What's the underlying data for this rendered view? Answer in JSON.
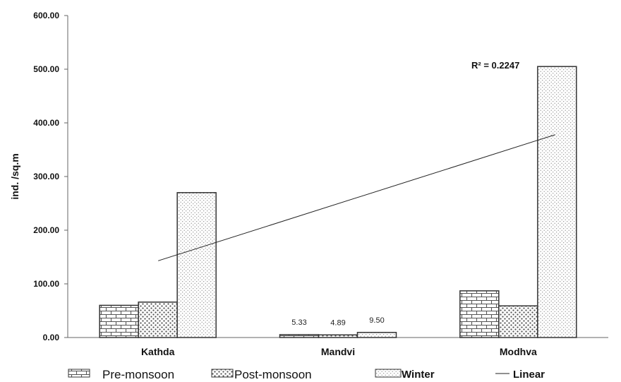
{
  "chart_data": {
    "type": "bar",
    "categories": [
      "Kathda",
      "Mandvi",
      "Modhva"
    ],
    "series": [
      {
        "name": "Pre-monsoon",
        "values": [
          60,
          5.33,
          87
        ],
        "pattern": "brick"
      },
      {
        "name": "Post-monsoon",
        "values": [
          66,
          4.89,
          59
        ],
        "pattern": "dots-dense"
      },
      {
        "name": "Winter",
        "values": [
          270,
          9.5,
          505
        ],
        "pattern": "dots-sparse"
      }
    ],
    "data_labels": {
      "Mandvi": [
        "5.33",
        "4.89",
        "9.50"
      ]
    },
    "trendline": {
      "name": "Linear",
      "type": "linear",
      "start": 143,
      "end": 378
    },
    "annotation": "R² = 0.2247",
    "ylabel": "ind. /sq.m",
    "xlabel": "",
    "ylim": [
      0,
      600
    ],
    "yticks": [
      "0.00",
      "100.00",
      "200.00",
      "300.00",
      "400.00",
      "500.00",
      "600.00"
    ],
    "legend": {
      "position": "bottom",
      "entries": [
        "Pre-monsoon",
        "Post-monsoon",
        "Winter",
        "Linear"
      ]
    },
    "grid": false,
    "colors": {
      "fill": "#ffffff",
      "pattern": "#555555",
      "outline": "#333333",
      "axis": "#666666"
    }
  }
}
